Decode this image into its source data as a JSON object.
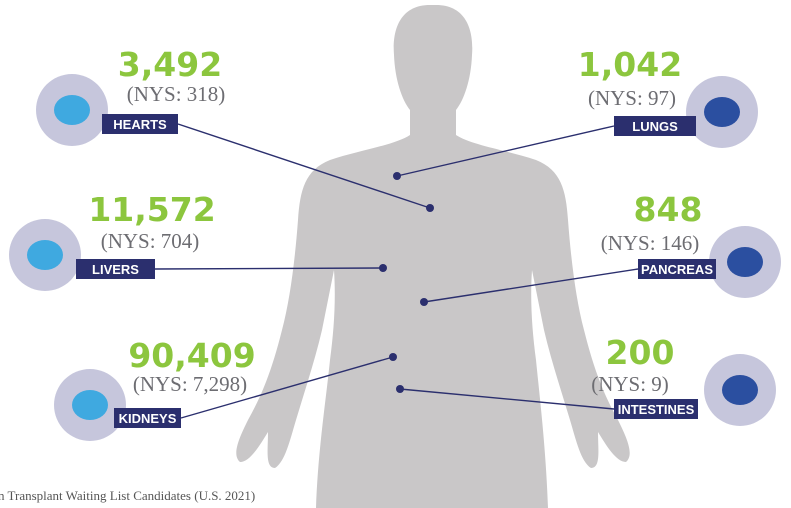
{
  "organs": [
    {
      "name": "HEARTS",
      "count": "3,492",
      "nys": "(NYS: 318)"
    },
    {
      "name": "LUNGS",
      "count": "1,042",
      "nys": "(NYS: 97)"
    },
    {
      "name": "LIVERS",
      "count": "11,572",
      "nys": "(NYS: 704)"
    },
    {
      "name": "PANCREAS",
      "count": "848",
      "nys": "(NYS: 146)"
    },
    {
      "name": "KIDNEYS",
      "count": "90,409",
      "nys": "(NYS: 7,298)"
    },
    {
      "name": "INTESTINES",
      "count": "200",
      "nys": "(NYS: 9)"
    }
  ],
  "caption": "n Transplant Waiting List Candidates (U.S. 2021)"
}
